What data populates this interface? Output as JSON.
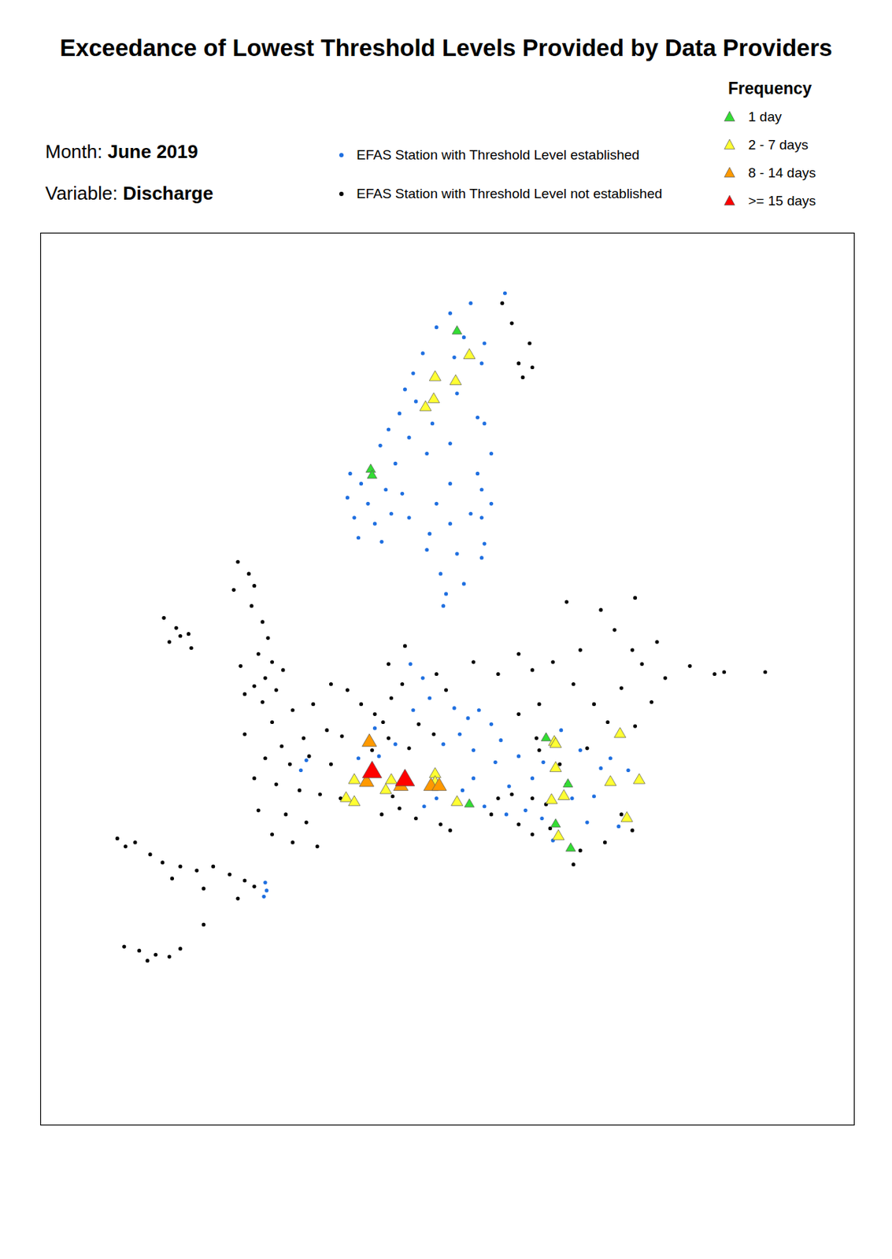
{
  "chart_data": {
    "type": "scatter",
    "title": "Exceedance of Lowest Threshold Levels Provided by Data Providers",
    "month_label": "Month:",
    "month": "June 2019",
    "variable_label": "Variable:",
    "variable": "Discharge",
    "legend_title": "Frequency",
    "xlim": [
      -16.4,
      43.0
    ],
    "ylim": [
      29.5,
      74.0
    ],
    "tick_labels": false,
    "series": [
      {
        "name": "EFAS Station with Threshold Level established",
        "color": "#1f6fe0",
        "marker": "dot",
        "group": "station",
        "points": [
          [
            13.5,
            70.0
          ],
          [
            15.0,
            70.5
          ],
          [
            17.5,
            71.0
          ],
          [
            12.5,
            69.3
          ],
          [
            14.5,
            68.8
          ],
          [
            11.5,
            68.0
          ],
          [
            16.0,
            68.5
          ],
          [
            10.8,
            67.0
          ],
          [
            13.8,
            67.8
          ],
          [
            15.8,
            67.5
          ],
          [
            10.2,
            66.2
          ],
          [
            11.0,
            65.6
          ],
          [
            9.8,
            65.0
          ],
          [
            12.2,
            64.5
          ],
          [
            9.0,
            64.2
          ],
          [
            10.5,
            63.8
          ],
          [
            8.4,
            63.4
          ],
          [
            11.8,
            63.0
          ],
          [
            13.5,
            63.5
          ],
          [
            15.5,
            64.8
          ],
          [
            16.0,
            64.5
          ],
          [
            14.0,
            66.0
          ],
          [
            16.5,
            63.0
          ],
          [
            15.8,
            61.2
          ],
          [
            15.5,
            62.0
          ],
          [
            13.5,
            61.5
          ],
          [
            6.2,
            62.0
          ],
          [
            7.0,
            61.5
          ],
          [
            6.0,
            60.8
          ],
          [
            7.5,
            60.5
          ],
          [
            6.5,
            59.8
          ],
          [
            8.0,
            59.5
          ],
          [
            6.8,
            58.8
          ],
          [
            8.5,
            58.6
          ],
          [
            9.2,
            60.0
          ],
          [
            10.0,
            61.0
          ],
          [
            9.5,
            62.5
          ],
          [
            10.5,
            59.8
          ],
          [
            8.8,
            61.2
          ],
          [
            12.0,
            59.0
          ],
          [
            13.5,
            59.5
          ],
          [
            15.0,
            60.0
          ],
          [
            16.5,
            60.5
          ],
          [
            14.0,
            58.0
          ],
          [
            12.8,
            57.0
          ],
          [
            14.5,
            56.5
          ],
          [
            13.2,
            56.0
          ],
          [
            15.8,
            57.8
          ],
          [
            15.8,
            59.8
          ],
          [
            16.0,
            58.5
          ],
          [
            12.5,
            60.5
          ],
          [
            11.8,
            58.2
          ],
          [
            13.0,
            55.4
          ],
          [
            10.6,
            52.5
          ],
          [
            11.5,
            51.8
          ],
          [
            12.0,
            50.8
          ],
          [
            10.8,
            50.2
          ],
          [
            13.8,
            50.3
          ],
          [
            14.8,
            49.8
          ],
          [
            15.6,
            50.2
          ],
          [
            16.5,
            49.5
          ],
          [
            14.2,
            49.0
          ],
          [
            17.2,
            48.7
          ],
          [
            13.0,
            48.5
          ],
          [
            15.2,
            48.2
          ],
          [
            16.8,
            47.6
          ],
          [
            18.5,
            47.9
          ],
          [
            19.5,
            46.8
          ],
          [
            20.3,
            47.6
          ],
          [
            17.8,
            46.4
          ],
          [
            15.2,
            46.8
          ],
          [
            14.4,
            46.2
          ],
          [
            16.0,
            45.4
          ],
          [
            17.6,
            45.0
          ],
          [
            19.0,
            45.2
          ],
          [
            20.2,
            44.8
          ],
          [
            21.0,
            43.7
          ],
          [
            24.5,
            47.3
          ],
          [
            25.2,
            47.8
          ],
          [
            26.5,
            47.2
          ],
          [
            24.0,
            45.9
          ],
          [
            25.8,
            44.4
          ],
          [
            23.5,
            44.6
          ],
          [
            22.4,
            45.8
          ],
          [
            8.3,
            47.9
          ],
          [
            6.8,
            47.8
          ],
          [
            8.0,
            49.3
          ],
          [
            3.0,
            47.7
          ],
          [
            2.6,
            47.2
          ],
          [
            0.0,
            41.6
          ],
          [
            0.1,
            41.2
          ],
          [
            -0.1,
            40.9
          ],
          [
            12.5,
            45.8
          ],
          [
            11.6,
            45.4
          ],
          [
            9.5,
            48.5
          ],
          [
            21.6,
            49.2
          ],
          [
            23.0,
            48.2
          ]
        ]
      },
      {
        "name": "EFAS Station with Threshold Level not established",
        "color": "#000000",
        "marker": "dot",
        "group": "station",
        "points": [
          [
            17.3,
            70.5
          ],
          [
            18.0,
            69.5
          ],
          [
            19.3,
            68.5
          ],
          [
            18.5,
            67.5
          ],
          [
            19.5,
            67.3
          ],
          [
            18.8,
            66.8
          ],
          [
            -2.0,
            57.6
          ],
          [
            -1.2,
            57.0
          ],
          [
            -0.8,
            56.4
          ],
          [
            -1.0,
            55.4
          ],
          [
            -0.2,
            54.6
          ],
          [
            0.2,
            53.8
          ],
          [
            -0.5,
            53.0
          ],
          [
            0.5,
            52.6
          ],
          [
            1.3,
            52.2
          ],
          [
            0.0,
            51.8
          ],
          [
            -0.8,
            51.4
          ],
          [
            -1.5,
            51.0
          ],
          [
            0.8,
            51.2
          ],
          [
            -0.2,
            50.6
          ],
          [
            -1.8,
            52.4
          ],
          [
            -2.3,
            56.2
          ],
          [
            -7.4,
            54.8
          ],
          [
            -6.5,
            54.3
          ],
          [
            -5.6,
            54.0
          ],
          [
            -7.0,
            53.6
          ],
          [
            -5.4,
            53.3
          ],
          [
            -6.2,
            53.9
          ],
          [
            -1.5,
            49.0
          ],
          [
            0.5,
            49.6
          ],
          [
            2.0,
            50.2
          ],
          [
            3.5,
            50.5
          ],
          [
            1.2,
            48.4
          ],
          [
            2.8,
            48.8
          ],
          [
            4.5,
            49.2
          ],
          [
            5.6,
            48.9
          ],
          [
            0.0,
            47.8
          ],
          [
            1.8,
            47.5
          ],
          [
            3.2,
            47.9
          ],
          [
            4.8,
            47.5
          ],
          [
            -0.8,
            46.8
          ],
          [
            0.8,
            46.5
          ],
          [
            2.5,
            46.2
          ],
          [
            4.0,
            46.0
          ],
          [
            5.5,
            45.8
          ],
          [
            -0.5,
            45.2
          ],
          [
            1.5,
            45.0
          ],
          [
            3.0,
            44.6
          ],
          [
            0.5,
            44.0
          ],
          [
            2.0,
            43.6
          ],
          [
            3.8,
            43.4
          ],
          [
            4.8,
            51.5
          ],
          [
            6.0,
            51.2
          ],
          [
            7.0,
            50.5
          ],
          [
            8.0,
            50.0
          ],
          [
            9.2,
            50.8
          ],
          [
            10.0,
            51.5
          ],
          [
            9.0,
            52.5
          ],
          [
            10.2,
            53.4
          ],
          [
            12.5,
            52.0
          ],
          [
            13.2,
            51.2
          ],
          [
            11.2,
            49.5
          ],
          [
            12.3,
            49.0
          ],
          [
            10.5,
            48.3
          ],
          [
            9.0,
            48.8
          ],
          [
            7.8,
            48.2
          ],
          [
            8.6,
            49.6
          ],
          [
            15.2,
            52.6
          ],
          [
            17.0,
            52.0
          ],
          [
            18.5,
            53.0
          ],
          [
            19.5,
            52.2
          ],
          [
            21.0,
            52.6
          ],
          [
            22.5,
            51.5
          ],
          [
            20.0,
            50.5
          ],
          [
            18.5,
            50.0
          ],
          [
            23.0,
            53.2
          ],
          [
            24.5,
            55.2
          ],
          [
            25.5,
            54.2
          ],
          [
            26.8,
            53.2
          ],
          [
            27.5,
            52.5
          ],
          [
            28.6,
            53.6
          ],
          [
            29.2,
            51.8
          ],
          [
            26.0,
            51.3
          ],
          [
            24.0,
            50.5
          ],
          [
            25.0,
            49.6
          ],
          [
            22.0,
            55.6
          ],
          [
            27.0,
            55.8
          ],
          [
            31.0,
            52.4
          ],
          [
            32.8,
            52.0
          ],
          [
            33.5,
            52.1
          ],
          [
            36.5,
            52.1
          ],
          [
            28.2,
            50.6
          ],
          [
            27.0,
            49.4
          ],
          [
            18.0,
            46.0
          ],
          [
            19.5,
            45.8
          ],
          [
            20.5,
            45.5
          ],
          [
            17.0,
            45.8
          ],
          [
            16.5,
            45.0
          ],
          [
            18.5,
            44.5
          ],
          [
            19.5,
            44.0
          ],
          [
            20.8,
            44.3
          ],
          [
            22.0,
            46.5
          ],
          [
            21.5,
            47.5
          ],
          [
            20.0,
            48.2
          ],
          [
            19.8,
            48.8
          ],
          [
            23.5,
            48.3
          ],
          [
            26.0,
            45.0
          ],
          [
            26.8,
            44.2
          ],
          [
            24.8,
            43.6
          ],
          [
            23.0,
            43.2
          ],
          [
            22.5,
            42.5
          ],
          [
            -10.8,
            43.8
          ],
          [
            -10.2,
            43.4
          ],
          [
            -9.5,
            43.6
          ],
          [
            -8.4,
            43.0
          ],
          [
            -7.5,
            42.6
          ],
          [
            -6.2,
            42.4
          ],
          [
            -5.0,
            42.2
          ],
          [
            -3.8,
            42.4
          ],
          [
            -2.6,
            42.0
          ],
          [
            -1.5,
            41.7
          ],
          [
            -0.8,
            41.4
          ],
          [
            -4.5,
            41.3
          ],
          [
            -6.8,
            41.8
          ],
          [
            -2.0,
            40.8
          ],
          [
            -10.3,
            38.4
          ],
          [
            -9.2,
            38.2
          ],
          [
            -8.0,
            38.0
          ],
          [
            -7.0,
            37.9
          ],
          [
            -6.2,
            38.3
          ],
          [
            -8.6,
            37.7
          ],
          [
            -4.5,
            39.5
          ],
          [
            8.5,
            45.0
          ],
          [
            9.8,
            45.3
          ],
          [
            11.0,
            44.8
          ],
          [
            9.3,
            45.9
          ],
          [
            12.8,
            44.5
          ],
          [
            13.5,
            44.2
          ]
        ]
      },
      {
        "name": "1 day",
        "color": "#33dd33",
        "marker": "triangle",
        "group": "frequency",
        "points": [
          [
            14.0,
            69.1
          ],
          [
            7.7,
            62.2
          ],
          [
            7.8,
            61.9
          ],
          [
            20.5,
            48.8
          ],
          [
            22.1,
            46.5
          ],
          [
            21.2,
            44.5
          ],
          [
            22.3,
            43.3
          ],
          [
            14.9,
            45.5
          ]
        ]
      },
      {
        "name": "2 - 7 days",
        "color": "#ffff33",
        "marker": "triangle",
        "group": "frequency",
        "points": [
          [
            14.9,
            67.9
          ],
          [
            12.4,
            66.8
          ],
          [
            13.9,
            66.6
          ],
          [
            12.3,
            65.7
          ],
          [
            11.7,
            65.3
          ],
          [
            21.1,
            48.6
          ],
          [
            21.2,
            47.3
          ],
          [
            25.9,
            49.0
          ],
          [
            25.2,
            46.6
          ],
          [
            27.3,
            46.7
          ],
          [
            21.8,
            45.9
          ],
          [
            20.9,
            45.7
          ],
          [
            26.4,
            44.8
          ],
          [
            6.5,
            46.7
          ],
          [
            5.9,
            45.8
          ],
          [
            6.5,
            45.6
          ],
          [
            9.2,
            46.7
          ],
          [
            8.8,
            46.2
          ],
          [
            12.4,
            47.0
          ],
          [
            12.4,
            46.6
          ],
          [
            14.0,
            45.6
          ],
          [
            21.4,
            43.9
          ],
          [
            21.2,
            48.5
          ]
        ]
      },
      {
        "name": "8 - 14 days",
        "color": "#ff9900",
        "marker": "triangle",
        "group": "frequency",
        "points": [
          [
            7.6,
            48.6
          ],
          [
            7.4,
            46.6
          ],
          [
            9.9,
            46.4
          ],
          [
            12.1,
            46.4
          ],
          [
            12.7,
            46.4
          ]
        ]
      },
      {
        "name": ">= 15 days",
        "color": "#ff0000",
        "marker": "triangle",
        "group": "frequency",
        "points": [
          [
            7.8,
            47.1
          ],
          [
            10.2,
            46.7
          ]
        ]
      }
    ]
  }
}
